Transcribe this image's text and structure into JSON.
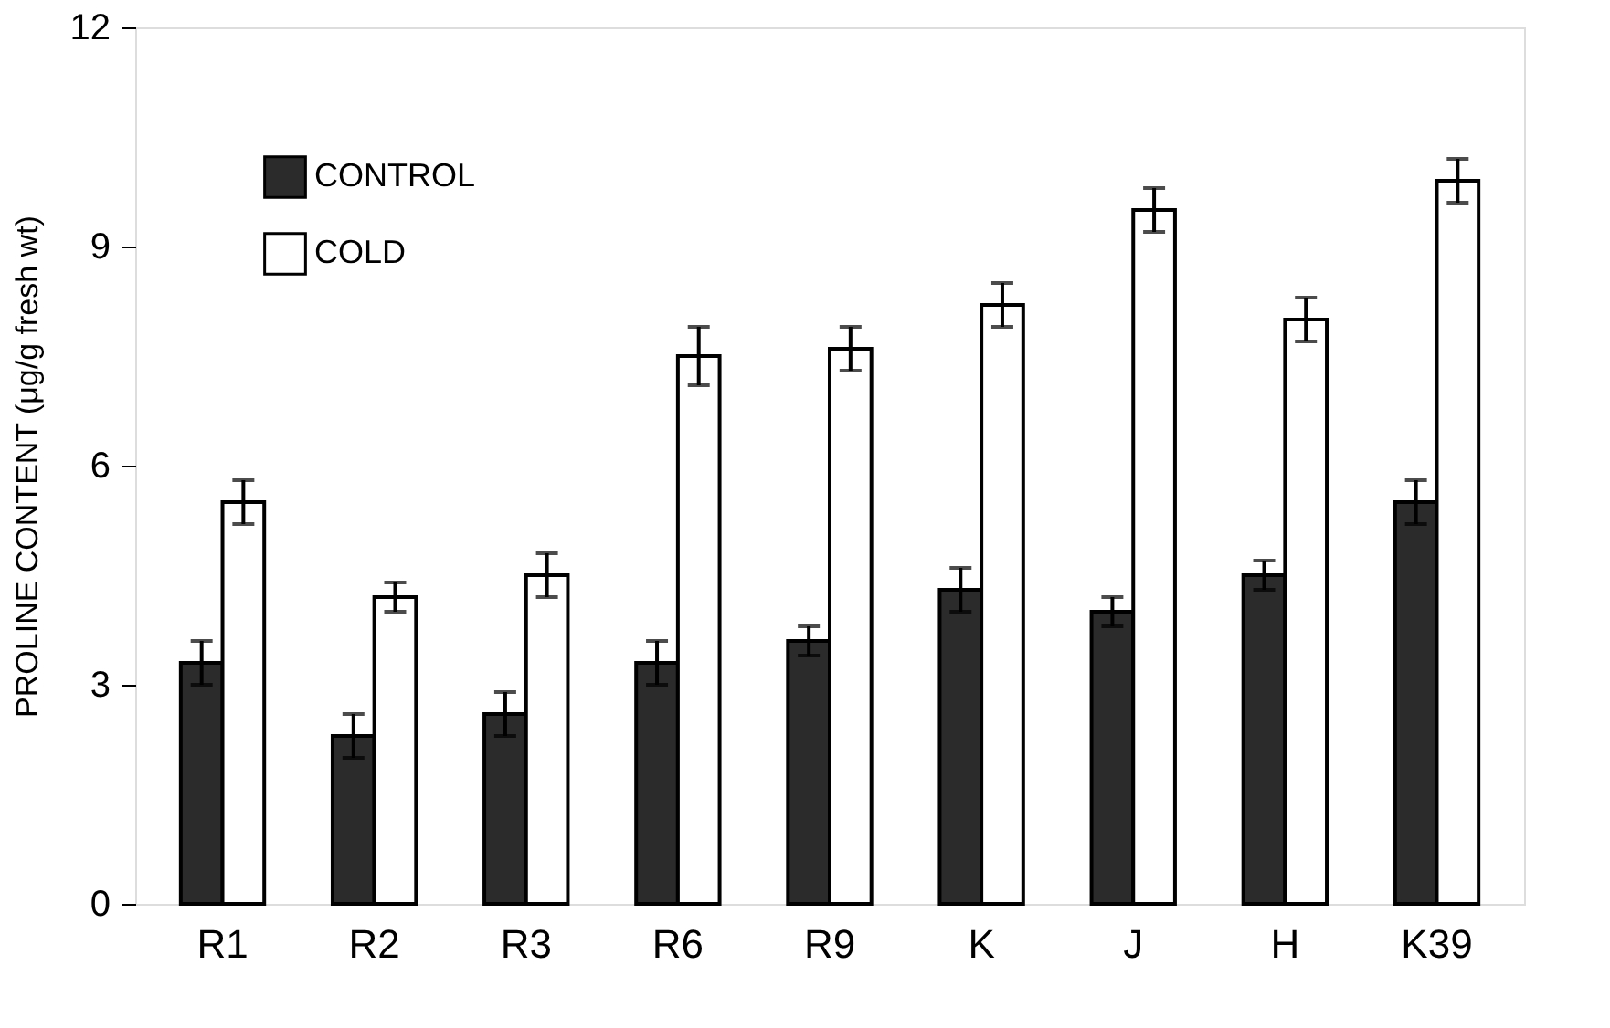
{
  "chart_data": {
    "type": "bar",
    "ylabel": "PROLINE CONTENT (μg/g fresh wt)",
    "categories": [
      "R1",
      "R2",
      "R3",
      "R6",
      "R9",
      "K",
      "J",
      "H",
      "K39"
    ],
    "series": [
      {
        "name": "CONTROL",
        "color": "#2b2b2b",
        "values": [
          3.3,
          2.3,
          2.6,
          3.3,
          3.6,
          4.3,
          4.0,
          4.5,
          5.5
        ],
        "errors": [
          0.3,
          0.3,
          0.3,
          0.3,
          0.2,
          0.3,
          0.2,
          0.2,
          0.3
        ]
      },
      {
        "name": "COLD",
        "color": "#ffffff",
        "values": [
          5.5,
          4.2,
          4.5,
          7.5,
          7.6,
          8.2,
          9.5,
          8.0,
          9.9
        ],
        "errors": [
          0.3,
          0.2,
          0.3,
          0.4,
          0.3,
          0.3,
          0.3,
          0.3,
          0.3
        ]
      }
    ],
    "ylim": [
      0,
      12
    ],
    "yticks": [
      0,
      3,
      6,
      9,
      12
    ],
    "grid": false,
    "legend": "top left"
  }
}
